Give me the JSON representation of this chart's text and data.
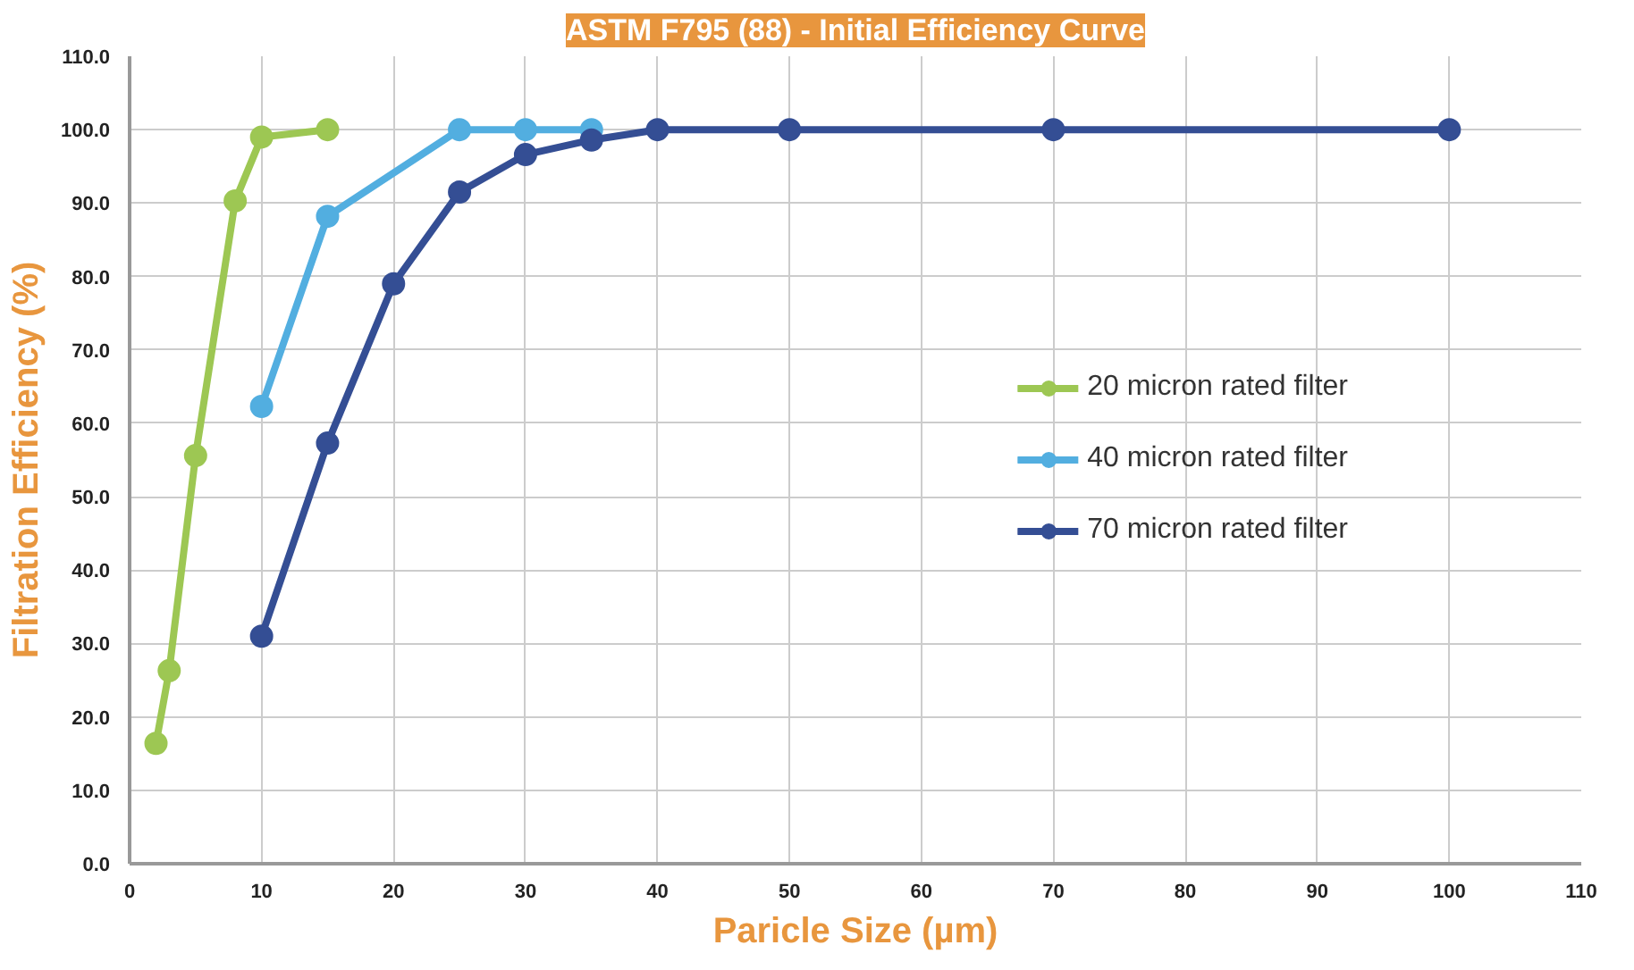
{
  "chart_data": {
    "type": "line",
    "title": "ASTM F795 (88) - Initial Efficiency Curve",
    "xlabel": "Paricle Size (µm)",
    "ylabel": "Filtration Efficiency (%)",
    "xlim": [
      0,
      110
    ],
    "xticks": [
      0,
      10,
      20,
      30,
      40,
      50,
      60,
      70,
      80,
      90,
      100,
      110
    ],
    "ylim": [
      0,
      110
    ],
    "yticks": [
      {
        "value": 0,
        "label": "0.0"
      },
      {
        "value": 10,
        "label": "10.0"
      },
      {
        "value": 20,
        "label": "20.0"
      },
      {
        "value": 30,
        "label": "30.0"
      },
      {
        "value": 40,
        "label": "40.0"
      },
      {
        "value": 50,
        "label": "50.0"
      },
      {
        "value": 60,
        "label": "60.0"
      },
      {
        "value": 70,
        "label": "70.0"
      },
      {
        "value": 80,
        "label": "80.0"
      },
      {
        "value": 90,
        "label": "90.0"
      },
      {
        "value": 100,
        "label": "100.0"
      },
      {
        "value": 110,
        "label": "110.0"
      }
    ],
    "grid": true,
    "legend": "right",
    "marker": "circle",
    "line_style": "solid",
    "series": [
      {
        "name": "20 micron rated filter",
        "color": "#9dc753",
        "x": [
          2,
          3,
          5,
          8,
          10,
          15
        ],
        "values": [
          16.4,
          26.3,
          55.6,
          90.3,
          99.0,
          100.0
        ]
      },
      {
        "name": "40 micron rated filter",
        "color": "#52aee0",
        "x": [
          10,
          15,
          25,
          30,
          35
        ],
        "values": [
          62.3,
          88.2,
          100.0,
          100.0,
          100.0
        ]
      },
      {
        "name": "70 micron rated filter",
        "color": "#344e94",
        "x": [
          10,
          15,
          20,
          25,
          30,
          35,
          40,
          50,
          70,
          100
        ],
        "values": [
          31.0,
          57.3,
          79.0,
          91.5,
          96.6,
          98.6,
          100.0,
          100.0,
          100.0,
          100.0
        ]
      }
    ]
  }
}
